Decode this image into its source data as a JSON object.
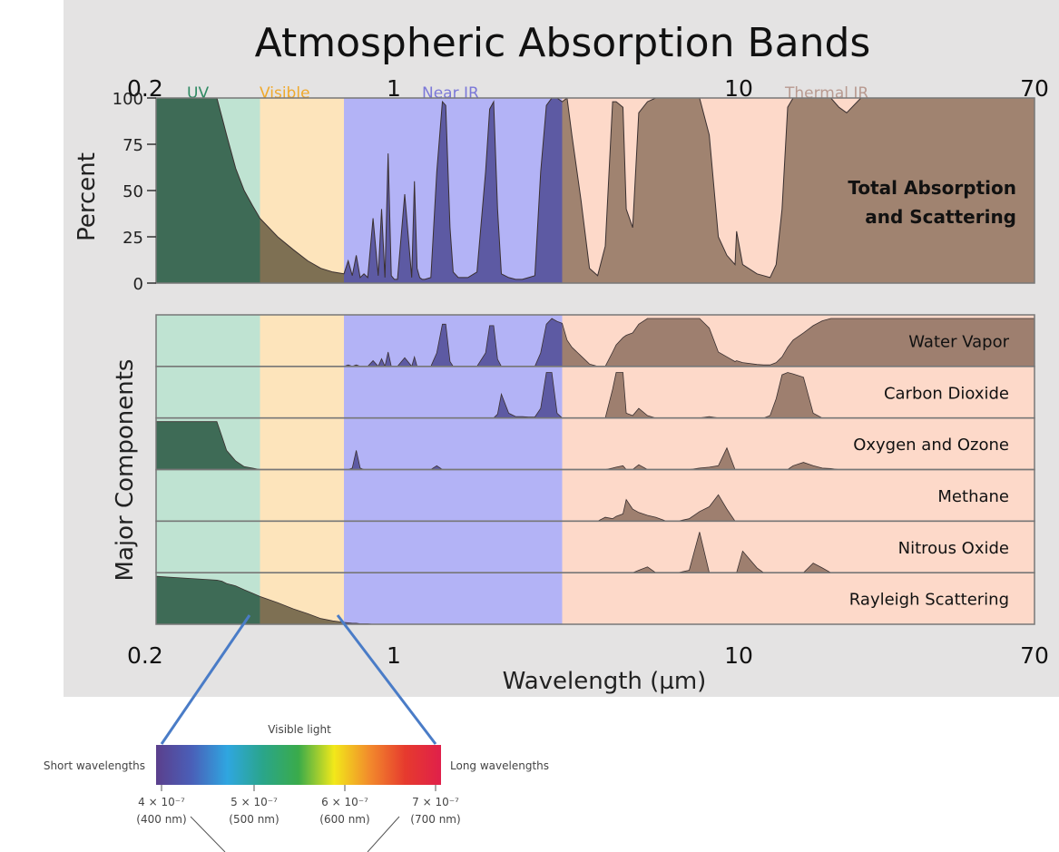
{
  "chart_data": {
    "type": "area",
    "title": "Atmospheric Absorption Bands",
    "x_scale": "log",
    "xlim": [
      0.2,
      70
    ],
    "x_ticks": [
      "0.2",
      "1",
      "10",
      "70"
    ],
    "xlabel": "Wavelength (µm)",
    "bands": [
      {
        "name": "UV",
        "range": [
          0.2,
          0.4
        ],
        "color": "#bfe3d2",
        "label_color": "#2f8a63"
      },
      {
        "name": "Visible",
        "range": [
          0.4,
          0.7
        ],
        "color": "#fde4bb",
        "label_color": "#f0a92c"
      },
      {
        "name": "Near IR",
        "range": [
          0.7,
          3
        ],
        "color": "#b3b3f6",
        "label_color": "#7b78d8"
      },
      {
        "name": "Thermal IR",
        "range": [
          3,
          70
        ],
        "color": "#fdd9c9",
        "label_color": "#b89a90"
      }
    ],
    "top_panel": {
      "ylabel": "Percent",
      "ylim": [
        0,
        100
      ],
      "y_ticks": [
        "0",
        "25",
        "50",
        "75",
        "100"
      ],
      "label_lines": [
        "Total Absorption",
        "and Scattering"
      ],
      "fill_colors": {
        "UV": "#3e6b56",
        "Visible": "#7e7053",
        "Near IR": "#5d5aa3",
        "Thermal IR": "#a08370"
      },
      "x": [
        0.2,
        0.3,
        0.31,
        0.32,
        0.34,
        0.36,
        0.38,
        0.4,
        0.45,
        0.5,
        0.55,
        0.6,
        0.65,
        0.7,
        0.72,
        0.74,
        0.76,
        0.78,
        0.8,
        0.82,
        0.85,
        0.88,
        0.9,
        0.92,
        0.94,
        0.96,
        0.98,
        1.0,
        1.05,
        1.1,
        1.12,
        1.14,
        1.16,
        1.18,
        1.2,
        1.25,
        1.3,
        1.35,
        1.38,
        1.42,
        1.45,
        1.5,
        1.6,
        1.7,
        1.8,
        1.85,
        1.9,
        1.95,
        2.0,
        2.1,
        2.2,
        2.3,
        2.4,
        2.5,
        2.6,
        2.7,
        2.8,
        2.9,
        3.0,
        3.1,
        3.2,
        3.4,
        3.6,
        3.8,
        4.0,
        4.2,
        4.3,
        4.5,
        4.6,
        4.8,
        5.0,
        5.3,
        5.6,
        6.0,
        6.5,
        7.0,
        7.5,
        8.0,
        8.5,
        9.0,
        9.5,
        9.6,
        10.0,
        11.0,
        11.5,
        12.0,
        12.5,
        13.0,
        13.5,
        14.0,
        15.0,
        16.0,
        17.0,
        18.0,
        19.0,
        20.0,
        22.0,
        25.0,
        30.0,
        70.0
      ],
      "values": [
        100,
        100,
        90,
        80,
        62,
        50,
        42,
        35,
        25,
        18,
        12,
        8,
        6,
        5,
        12,
        4,
        15,
        3,
        5,
        3,
        35,
        4,
        40,
        3,
        70,
        4,
        2,
        2,
        48,
        3,
        55,
        8,
        3,
        2,
        2,
        3,
        60,
        98,
        96,
        30,
        6,
        3,
        3,
        6,
        60,
        94,
        98,
        40,
        5,
        3,
        2,
        2,
        3,
        4,
        60,
        96,
        100,
        100,
        98,
        100,
        80,
        45,
        8,
        4,
        20,
        98,
        98,
        95,
        40,
        30,
        92,
        98,
        100,
        100,
        100,
        100,
        100,
        80,
        25,
        15,
        10,
        28,
        10,
        5,
        4,
        3,
        10,
        40,
        95,
        100,
        100,
        100,
        100,
        100,
        95,
        92,
        100,
        100,
        100,
        100
      ]
    },
    "series": [
      {
        "name": "Water Vapor",
        "values": [
          0,
          0,
          0,
          0,
          0,
          0,
          0,
          0,
          0,
          0,
          0,
          0,
          0,
          0,
          3,
          0,
          3,
          0,
          0,
          0,
          12,
          0,
          16,
          0,
          30,
          0,
          0,
          0,
          18,
          0,
          20,
          0,
          0,
          0,
          0,
          0,
          28,
          88,
          88,
          10,
          0,
          0,
          0,
          0,
          28,
          85,
          85,
          15,
          0,
          0,
          0,
          0,
          0,
          0,
          28,
          88,
          100,
          94,
          90,
          55,
          40,
          22,
          5,
          0,
          0,
          30,
          45,
          60,
          65,
          70,
          88,
          100,
          100,
          100,
          100,
          100,
          100,
          80,
          30,
          20,
          10,
          12,
          8,
          4,
          3,
          3,
          8,
          20,
          40,
          55,
          70,
          85,
          95,
          100,
          100,
          100,
          100,
          100,
          100,
          100
        ]
      },
      {
        "name": "Carbon Dioxide",
        "values": [
          0,
          0,
          0,
          0,
          0,
          0,
          0,
          0,
          0,
          0,
          0,
          0,
          0,
          0,
          0,
          0,
          0,
          0,
          0,
          0,
          0,
          0,
          0,
          0,
          0,
          0,
          0,
          0,
          0,
          0,
          0,
          0,
          0,
          0,
          0,
          0,
          0,
          0,
          0,
          0,
          0,
          0,
          0,
          0,
          0,
          0,
          0,
          8,
          50,
          10,
          3,
          3,
          2,
          2,
          20,
          95,
          95,
          10,
          0,
          0,
          0,
          0,
          0,
          0,
          0,
          60,
          95,
          95,
          10,
          5,
          20,
          5,
          0,
          0,
          0,
          0,
          0,
          3,
          0,
          0,
          0,
          0,
          0,
          0,
          0,
          5,
          40,
          90,
          95,
          92,
          85,
          10,
          0,
          0,
          0,
          0,
          0,
          0,
          0,
          0
        ]
      },
      {
        "name": "Oxygen and Ozone",
        "values": [
          100,
          100,
          70,
          40,
          18,
          6,
          3,
          0,
          0,
          0,
          0,
          0,
          0,
          0,
          0,
          3,
          40,
          3,
          0,
          0,
          0,
          0,
          0,
          0,
          0,
          0,
          0,
          0,
          0,
          0,
          0,
          0,
          0,
          0,
          0,
          0,
          8,
          0,
          0,
          0,
          0,
          0,
          0,
          0,
          0,
          0,
          0,
          0,
          0,
          0,
          0,
          0,
          0,
          0,
          0,
          0,
          0,
          0,
          0,
          0,
          0,
          0,
          0,
          0,
          0,
          3,
          5,
          8,
          0,
          0,
          10,
          0,
          0,
          0,
          0,
          0,
          3,
          5,
          8,
          45,
          0,
          0,
          0,
          0,
          0,
          0,
          0,
          0,
          0,
          8,
          15,
          8,
          3,
          2,
          0,
          0,
          0,
          0,
          0,
          0
        ]
      },
      {
        "name": "Methane",
        "values": [
          0,
          0,
          0,
          0,
          0,
          0,
          0,
          0,
          0,
          0,
          0,
          0,
          0,
          0,
          0,
          0,
          0,
          0,
          0,
          0,
          0,
          0,
          0,
          0,
          0,
          0,
          0,
          0,
          0,
          0,
          0,
          0,
          0,
          0,
          0,
          0,
          0,
          0,
          0,
          0,
          0,
          0,
          0,
          0,
          0,
          0,
          0,
          0,
          0,
          0,
          0,
          0,
          0,
          0,
          0,
          0,
          0,
          0,
          0,
          0,
          0,
          0,
          0,
          0,
          8,
          5,
          10,
          15,
          45,
          25,
          18,
          12,
          8,
          0,
          0,
          5,
          20,
          30,
          55,
          25,
          0,
          0,
          0,
          0,
          0,
          0,
          0,
          0,
          0,
          0,
          0,
          0,
          0,
          0,
          0,
          0,
          0,
          0,
          0,
          0
        ]
      },
      {
        "name": "Nitrous Oxide",
        "values": [
          0,
          0,
          0,
          0,
          0,
          0,
          0,
          0,
          0,
          0,
          0,
          0,
          0,
          0,
          0,
          0,
          0,
          0,
          0,
          0,
          0,
          0,
          0,
          0,
          0,
          0,
          0,
          0,
          0,
          0,
          0,
          0,
          0,
          0,
          0,
          0,
          0,
          0,
          0,
          0,
          0,
          0,
          0,
          0,
          0,
          0,
          0,
          0,
          0,
          0,
          0,
          0,
          0,
          0,
          0,
          0,
          0,
          0,
          0,
          0,
          0,
          0,
          0,
          0,
          0,
          0,
          0,
          0,
          0,
          0,
          5,
          12,
          0,
          0,
          0,
          5,
          85,
          0,
          0,
          0,
          0,
          0,
          45,
          10,
          0,
          0,
          0,
          0,
          0,
          0,
          0,
          20,
          10,
          0,
          0,
          0,
          0,
          0,
          0,
          0
        ]
      },
      {
        "name": "Rayleigh Scattering",
        "values": [
          100,
          92,
          90,
          85,
          80,
          72,
          65,
          58,
          45,
          32,
          22,
          12,
          7,
          4,
          3,
          2,
          2,
          1,
          1,
          1,
          0,
          0,
          0,
          0,
          0,
          0,
          0,
          0,
          0,
          0,
          0,
          0,
          0,
          0,
          0,
          0,
          0,
          0,
          0,
          0,
          0,
          0,
          0,
          0,
          0,
          0,
          0,
          0,
          0,
          0,
          0,
          0,
          0,
          0,
          0,
          0,
          0,
          0,
          0,
          0,
          0,
          0,
          0,
          0,
          0,
          0,
          0,
          0,
          0,
          0,
          0,
          0,
          0,
          0,
          0,
          0,
          0,
          0,
          0,
          0,
          0,
          0,
          0,
          0,
          0,
          0,
          0,
          0,
          0,
          0,
          0,
          0,
          0,
          0,
          0,
          0,
          0,
          0,
          0,
          0
        ]
      }
    ],
    "components_ylabel": "Major Components",
    "components_fill": "#9e7f6f",
    "inset": {
      "title": "Visible light",
      "left_label": "Short wavelengths",
      "right_label": "Long wavelengths",
      "ticks": [
        {
          "value": "4 × 10⁻⁷",
          "sub": "(400 nm)"
        },
        {
          "value": "5 × 10⁻⁷",
          "sub": "(500 nm)"
        },
        {
          "value": "6 × 10⁻⁷",
          "sub": "(600 nm)"
        },
        {
          "value": "7 × 10⁻⁷",
          "sub": "(700 nm)"
        }
      ],
      "gradient": [
        "#5b3f8c",
        "#4a5fb8",
        "#2fa6e0",
        "#2aa58a",
        "#3aab4a",
        "#f2e81a",
        "#f28a2c",
        "#e63a2e",
        "#e0204a"
      ],
      "connector_color": "#4a7cc7"
    }
  }
}
